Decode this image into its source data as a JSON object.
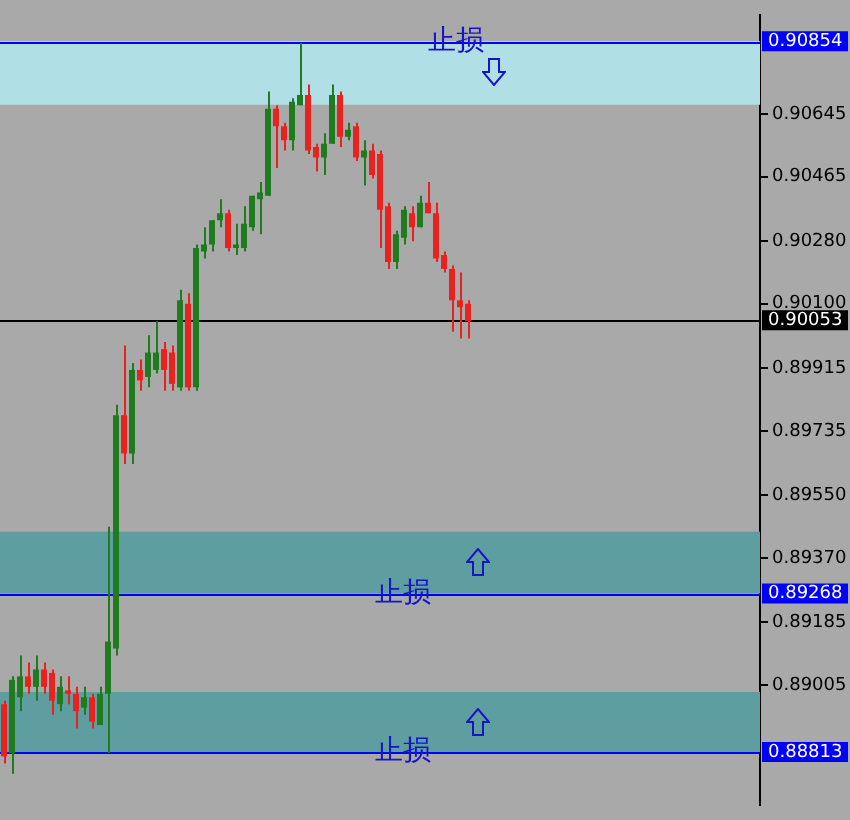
{
  "chart_data": {
    "type": "candlestick",
    "categories": [
      null,
      null,
      null,
      null,
      null,
      null,
      null,
      null,
      null,
      null,
      null,
      null,
      null,
      null,
      null,
      null,
      null,
      null,
      null,
      null,
      null,
      null,
      null,
      null,
      null,
      null,
      null,
      null,
      null,
      null,
      null,
      null,
      null,
      null,
      null,
      null,
      null,
      null,
      null,
      null,
      null,
      null,
      null,
      null,
      null,
      null,
      null,
      null,
      null,
      null,
      null,
      null,
      null,
      null,
      null,
      null,
      null,
      null,
      null,
      null,
      null,
      null,
      null,
      null,
      null,
      null,
      null,
      null,
      null,
      null,
      null,
      null,
      null,
      null,
      null,
      null,
      null,
      null,
      null,
      null,
      null,
      null,
      null,
      null,
      null,
      null,
      null,
      null,
      null,
      null,
      null,
      null,
      null,
      null,
      null
    ],
    "ohlc": [
      [
        0.8895,
        0.8896,
        0.8878,
        0.888
      ],
      [
        0.8881,
        0.8903,
        0.8875,
        0.8902
      ],
      [
        0.8897,
        0.8909,
        0.8893,
        0.8903
      ],
      [
        0.8903,
        0.8907,
        0.8898,
        0.89
      ],
      [
        0.89,
        0.8909,
        0.8896,
        0.8905
      ],
      [
        0.8905,
        0.8907,
        0.8898,
        0.89
      ],
      [
        0.8904,
        0.8905,
        0.8892,
        0.8896
      ],
      [
        0.8895,
        0.8903,
        0.8893,
        0.89
      ],
      [
        0.8899,
        0.8903,
        0.8895,
        0.8898
      ],
      [
        0.8898,
        0.89,
        0.8888,
        0.8893
      ],
      [
        0.8894,
        0.89,
        0.8892,
        0.8897
      ],
      [
        0.8897,
        0.8898,
        0.8888,
        0.889
      ],
      [
        0.8889,
        0.89,
        0.8889,
        0.8898
      ],
      [
        0.8898,
        0.8946,
        0.8881,
        0.8913
      ],
      [
        0.8911,
        0.8981,
        0.8909,
        0.8978
      ],
      [
        0.8978,
        0.8998,
        0.8964,
        0.8967
      ],
      [
        0.8967,
        0.8993,
        0.8964,
        0.8991
      ],
      [
        0.8991,
        0.8994,
        0.8985,
        0.8988
      ],
      [
        0.8989,
        0.9001,
        0.8986,
        0.8996
      ],
      [
        0.8991,
        0.9005,
        0.899,
        0.8996
      ],
      [
        0.8997,
        0.8999,
        0.8985,
        0.8991
      ],
      [
        0.8996,
        0.8998,
        0.8985,
        0.8987
      ],
      [
        0.8986,
        0.9014,
        0.8985,
        0.9011
      ],
      [
        0.901,
        0.9013,
        0.8985,
        0.8986
      ],
      [
        0.8986,
        0.9027,
        0.8985,
        0.9026
      ],
      [
        0.9025,
        0.9032,
        0.9023,
        0.9027
      ],
      [
        0.9027,
        0.9034,
        0.9025,
        0.9034
      ],
      [
        0.9034,
        0.904,
        0.9032,
        0.9036
      ],
      [
        0.9036,
        0.9037,
        0.9025,
        0.9026
      ],
      [
        0.9026,
        0.9033,
        0.9024,
        0.9027
      ],
      [
        0.9026,
        0.9038,
        0.9025,
        0.9033
      ],
      [
        0.9032,
        0.9041,
        0.9031,
        0.9041
      ],
      [
        0.904,
        0.9045,
        0.903,
        0.9042
      ],
      [
        0.9041,
        0.9071,
        0.9041,
        0.9066
      ],
      [
        0.9066,
        0.9067,
        0.9049,
        0.9061
      ],
      [
        0.9061,
        0.9062,
        0.9054,
        0.9057
      ],
      [
        0.9057,
        0.9069,
        0.9054,
        0.9068
      ],
      [
        0.9067,
        0.9085,
        0.9067,
        0.907
      ],
      [
        0.907,
        0.9073,
        0.9053,
        0.9054
      ],
      [
        0.9055,
        0.9056,
        0.9048,
        0.9052
      ],
      [
        0.9052,
        0.9059,
        0.9047,
        0.9056
      ],
      [
        0.9056,
        0.9073,
        0.9056,
        0.907
      ],
      [
        0.907,
        0.9071,
        0.9055,
        0.9058
      ],
      [
        0.9058,
        0.9062,
        0.9057,
        0.906
      ],
      [
        0.9061,
        0.9062,
        0.9051,
        0.9052
      ],
      [
        0.9052,
        0.9057,
        0.9044,
        0.9054
      ],
      [
        0.9054,
        0.9056,
        0.9046,
        0.9047
      ],
      [
        0.9053,
        0.9054,
        0.9026,
        0.9037
      ],
      [
        0.9038,
        0.9039,
        0.902,
        0.9022
      ],
      [
        0.9022,
        0.9031,
        0.902,
        0.903
      ],
      [
        0.9029,
        0.9038,
        0.9027,
        0.9037
      ],
      [
        0.9036,
        0.9038,
        0.9028,
        0.9032
      ],
      [
        0.9032,
        0.9041,
        0.9032,
        0.9039
      ],
      [
        0.9039,
        0.9045,
        0.9036,
        0.9036
      ],
      [
        0.9036,
        0.9039,
        0.9022,
        0.9023
      ],
      [
        0.9024,
        0.9025,
        0.9019,
        0.902
      ],
      [
        0.902,
        0.9021,
        0.9002,
        0.9011
      ],
      [
        0.9011,
        0.9019,
        0.9,
        0.9009
      ],
      [
        0.901,
        0.9011,
        0.9,
        0.9005
      ],
      null,
      null,
      null,
      null,
      null,
      null,
      null,
      null,
      null,
      null,
      null,
      null,
      null,
      null,
      null,
      null,
      null,
      null,
      null,
      null,
      null,
      null,
      null,
      null,
      null,
      null,
      null,
      null,
      null,
      null,
      null,
      null,
      null,
      null,
      null,
      null
    ],
    "colors": [
      "#e8231f",
      "#1e7b1e",
      "#1e7b1e",
      "#e8231f",
      "#1e7b1e",
      "#e8231f",
      "#e8231f",
      "#1e7b1e",
      "#e8231f",
      "#e8231f",
      "#1e7b1e",
      "#e8231f",
      "#1e7b1e",
      "#1e7b1e",
      "#1e7b1e",
      "#e8231f",
      "#1e7b1e",
      "#e8231f",
      "#1e7b1e",
      "#1e7b1e",
      "#e8231f",
      "#e8231f",
      "#1e7b1e",
      "#e8231f",
      "#1e7b1e",
      "#1e7b1e",
      "#1e7b1e",
      "#1e7b1e",
      "#e8231f",
      "#1e7b1e",
      "#1e7b1e",
      "#1e7b1e",
      "#1e7b1e",
      "#1e7b1e",
      "#e8231f",
      "#e8231f",
      "#1e7b1e",
      "#1e7b1e",
      "#e8231f",
      "#e8231f",
      "#1e7b1e",
      "#1e7b1e",
      "#e8231f",
      "#1e7b1e",
      "#e8231f",
      "#1e7b1e",
      "#e8231f",
      "#e8231f",
      "#e8231f",
      "#1e7b1e",
      "#1e7b1e",
      "#e8231f",
      "#1e7b1e",
      "#e8231f",
      "#e8231f",
      "#e8231f",
      "#e8231f",
      "#e8231f",
      "#e8231f",
      null,
      null,
      null,
      null,
      null,
      null,
      null,
      null,
      null,
      null,
      null,
      null,
      null,
      null,
      null,
      null,
      null,
      null,
      null,
      null,
      null,
      null,
      null,
      null,
      null,
      null,
      null,
      null,
      null,
      null,
      null,
      null,
      null,
      null,
      null,
      null
    ],
    "ylim": [
      0.8866,
      0.9093
    ],
    "yticks": [
      {
        "value": 0.90645,
        "label": "0.90645"
      },
      {
        "value": 0.90465,
        "label": "0.90465"
      },
      {
        "value": 0.9028,
        "label": "0.90280"
      },
      {
        "value": 0.901,
        "label": "0.90100"
      },
      {
        "value": 0.89915,
        "label": "0.89915"
      },
      {
        "value": 0.89735,
        "label": "0.89735"
      },
      {
        "value": 0.8955,
        "label": "0.89550"
      },
      {
        "value": 0.8937,
        "label": "0.89370"
      },
      {
        "value": 0.89185,
        "label": "0.89185"
      },
      {
        "value": 0.89005,
        "label": "0.89005"
      }
    ],
    "tick_labels": "y",
    "ref_lines": [
      {
        "axis": "y",
        "value": 0.90854,
        "label": "0.90854",
        "color": "#0000ff"
      },
      {
        "axis": "y",
        "value": 0.90053,
        "label": "0.90053",
        "color": "#000000"
      },
      {
        "axis": "y",
        "value": 0.89268,
        "label": "0.89268",
        "color": "#0000ff"
      },
      {
        "axis": "y",
        "value": 0.88813,
        "label": "0.88813",
        "color": "#0000ff"
      }
    ],
    "bands": [
      {
        "axis": "y",
        "from": 0.90672,
        "to": 0.90854,
        "label": "止损",
        "color": "#b0e0e6"
      },
      {
        "axis": "y",
        "from": 0.89268,
        "to": 0.89445,
        "label": "止损",
        "color": "#5f9ea0"
      },
      {
        "axis": "y",
        "from": 0.88813,
        "to": 0.88985,
        "label": "止损",
        "color": "#5f9ea0"
      }
    ]
  }
}
